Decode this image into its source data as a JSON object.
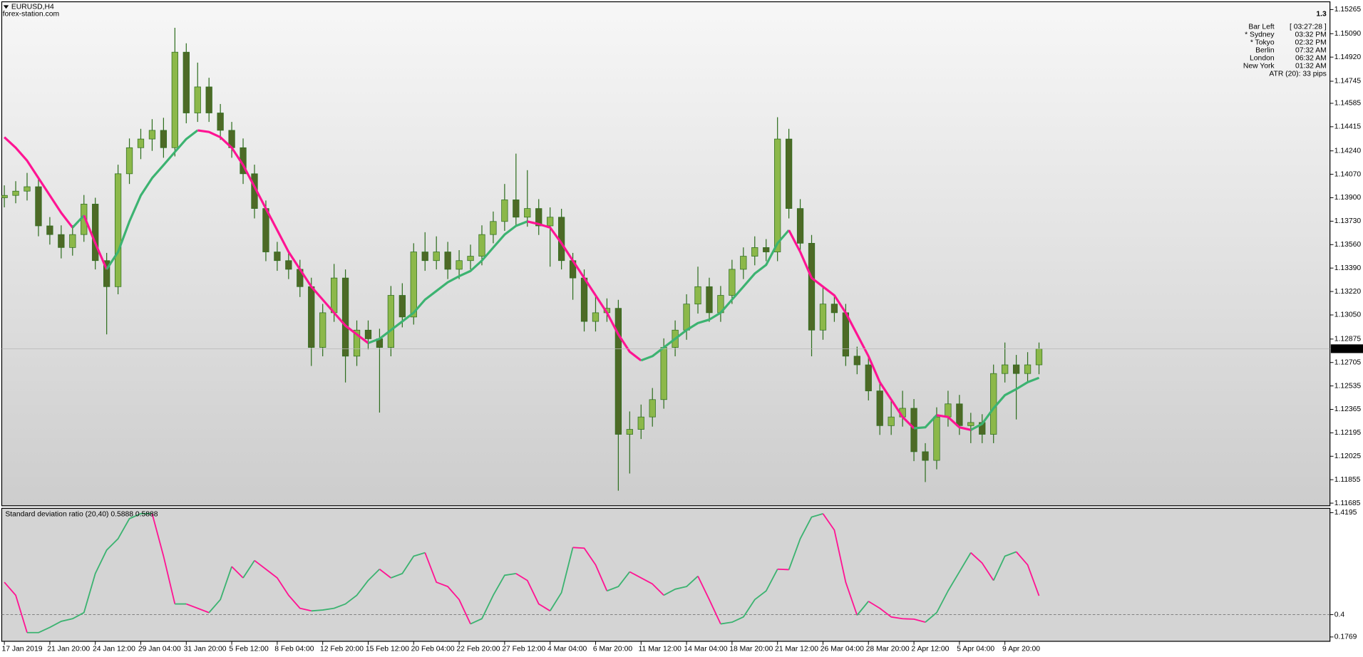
{
  "chart_data": [
    {
      "type": "candlestick",
      "title": "EURUSD,H4",
      "subtitle": "forex-station.com",
      "categories": [
        "17 Jan 2019",
        null,
        null,
        null,
        "21 Jan 20:00",
        null,
        null,
        null,
        "24 Jan 12:00",
        null,
        null,
        null,
        "29 Jan 04:00",
        null,
        null,
        null,
        "31 Jan 20:00",
        null,
        null,
        null,
        "5 Feb 12:00",
        null,
        null,
        null,
        "8 Feb 04:00",
        null,
        null,
        null,
        "12 Feb 20:00",
        null,
        null,
        null,
        "15 Feb 12:00",
        null,
        null,
        null,
        "20 Feb 04:00",
        null,
        null,
        null,
        "22 Feb 20:00",
        null,
        null,
        null,
        "27 Feb 12:00",
        null,
        null,
        null,
        "4 Mar 04:00",
        null,
        null,
        null,
        "6 Mar 20:00",
        null,
        null,
        null,
        "11 Mar 12:00",
        null,
        null,
        null,
        "14 Mar 04:00",
        null,
        null,
        null,
        "18 Mar 20:00",
        null,
        null,
        null,
        "21 Mar 12:00",
        null,
        null,
        null,
        "26 Mar 04:00",
        null,
        null,
        null,
        "28 Mar 20:00",
        null,
        null,
        null,
        "2 Apr 12:00",
        null,
        null,
        null,
        "5 Apr 04:00",
        null,
        null,
        null,
        "9 Apr 20:00",
        null,
        null,
        null
      ],
      "open": [
        1.139,
        1.13917,
        1.13948,
        1.1398,
        1.13696,
        1.13633,
        1.13539,
        1.13633,
        1.13854,
        1.13444,
        1.13255,
        1.14074,
        1.14263,
        1.14326,
        1.14389,
        1.14263,
        1.14956,
        1.14515,
        1.14704,
        1.14515,
        1.14389,
        1.14263,
        1.14074,
        1.13822,
        1.13507,
        1.13444,
        1.13381,
        1.13255,
        1.12814,
        1.13066,
        1.13318,
        1.12751,
        1.1294,
        1.12877,
        1.12814,
        1.13192,
        1.13035,
        1.13507,
        1.13444,
        1.13507,
        1.13381,
        1.13444,
        1.13476,
        1.13633,
        1.13728,
        1.13885,
        1.13759,
        1.13822,
        1.13696,
        1.13759,
        1.13444,
        1.13318,
        1.13003,
        1.13066,
        1.13098,
        1.12184,
        1.1222,
        1.1231,
        1.12436,
        1.12814,
        1.1294,
        1.13129,
        1.13255,
        1.13066,
        1.13192,
        1.13381,
        1.13476,
        1.13539,
        1.13507,
        1.14326,
        1.13822,
        1.1357,
        1.1294,
        1.13129,
        1.13066,
        1.12751,
        1.12688,
        1.12499,
        1.12247,
        1.1231,
        1.12373,
        1.12058,
        1.11995,
        1.1231,
        1.12405,
        1.12247,
        1.1227,
        1.12184,
        1.12625,
        1.12688,
        1.12625,
        1.12688
      ],
      "high": [
        1.1399,
        1.1402,
        1.1408,
        1.1404,
        1.1376,
        1.137,
        1.137,
        1.1392,
        1.139,
        1.135,
        1.1414,
        1.1433,
        1.144,
        1.1447,
        1.1448,
        1.15133,
        1.1502,
        1.1488,
        1.1477,
        1.1458,
        1.1445,
        1.1433,
        1.1414,
        1.1388,
        1.1358,
        1.1352,
        1.1345,
        1.1332,
        1.1313,
        1.1342,
        1.1338,
        1.1301,
        1.1301,
        1.1295,
        1.1326,
        1.1328,
        1.1357,
        1.1365,
        1.1362,
        1.1358,
        1.1352,
        1.1356,
        1.137,
        1.138,
        1.14,
        1.1422,
        1.141,
        1.1389,
        1.1383,
        1.1382,
        1.135,
        1.1338,
        1.132,
        1.1317,
        1.1316,
        1.1235,
        1.124,
        1.1252,
        1.1288,
        1.1301,
        1.132,
        1.134,
        1.1332,
        1.1326,
        1.1345,
        1.1354,
        1.1362,
        1.136,
        1.14484,
        1.144,
        1.1389,
        1.1363,
        1.1325,
        1.132,
        1.1313,
        1.1282,
        1.1275,
        1.1256,
        1.1244,
        1.125,
        1.1244,
        1.1212,
        1.1238,
        1.125,
        1.1247,
        1.1234,
        1.1233,
        1.1269,
        1.1285,
        1.1276,
        1.1278,
        1.1285
      ],
      "low": [
        1.1383,
        1.1386,
        1.1388,
        1.1362,
        1.1356,
        1.1346,
        1.1348,
        1.1358,
        1.1338,
        1.12909,
        1.132,
        1.14,
        1.1418,
        1.1424,
        1.1419,
        1.142,
        1.1444,
        1.1445,
        1.1445,
        1.1432,
        1.1419,
        1.14,
        1.1375,
        1.1344,
        1.1337,
        1.1331,
        1.1318,
        1.1268,
        1.1275,
        1.13,
        1.1256,
        1.1268,
        1.128,
        1.12342,
        1.1275,
        1.1296,
        1.1298,
        1.1337,
        1.1338,
        1.1331,
        1.1331,
        1.1338,
        1.1341,
        1.1357,
        1.1366,
        1.1369,
        1.1369,
        1.1363,
        1.134,
        1.1338,
        1.1316,
        1.1293,
        1.1293,
        1.13,
        1.11775,
        1.119,
        1.1215,
        1.1224,
        1.1237,
        1.1275,
        1.1287,
        1.1306,
        1.13,
        1.13,
        1.1313,
        1.1331,
        1.1341,
        1.1344,
        1.1344,
        1.1375,
        1.135,
        1.1275,
        1.1287,
        1.13,
        1.1268,
        1.1262,
        1.1243,
        1.1218,
        1.1218,
        1.1224,
        1.1199,
        1.11838,
        1.1193,
        1.1224,
        1.1218,
        1.1212,
        1.1212,
        1.1212,
        1.1256,
        1.12292,
        1.1256,
        1.1262
      ],
      "close": [
        1.13917,
        1.13948,
        1.1398,
        1.13696,
        1.13633,
        1.13539,
        1.13633,
        1.13854,
        1.13444,
        1.13255,
        1.14074,
        1.14263,
        1.14326,
        1.14389,
        1.14263,
        1.14956,
        1.14515,
        1.14704,
        1.14515,
        1.14389,
        1.14263,
        1.14074,
        1.13822,
        1.13507,
        1.13444,
        1.13381,
        1.13255,
        1.12814,
        1.13066,
        1.13318,
        1.12751,
        1.1294,
        1.12877,
        1.12814,
        1.13192,
        1.13035,
        1.13507,
        1.13444,
        1.13507,
        1.13381,
        1.13444,
        1.13476,
        1.13633,
        1.13728,
        1.13885,
        1.13759,
        1.13822,
        1.13696,
        1.13759,
        1.13444,
        1.13318,
        1.13003,
        1.13066,
        1.13098,
        1.12184,
        1.1222,
        1.1231,
        1.12436,
        1.12814,
        1.1294,
        1.13129,
        1.13255,
        1.13066,
        1.13192,
        1.13381,
        1.13476,
        1.13539,
        1.13507,
        1.14326,
        1.13822,
        1.1357,
        1.1294,
        1.13129,
        1.13066,
        1.12751,
        1.12688,
        1.12499,
        1.12247,
        1.1231,
        1.12373,
        1.12058,
        1.11995,
        1.1231,
        1.12405,
        1.12247,
        1.1227,
        1.12184,
        1.12625,
        1.12688,
        1.12625,
        1.12688,
        1.12805
      ],
      "up_color": "#8cb84a",
      "down_color": "#4d6a26",
      "wick_color": "#2e6e1e",
      "lines": [
        {
          "values": [
            1.14339,
            1.14263,
            1.14169,
            1.14043,
            1.13917,
            1.13791,
            1.13684,
            1.13772,
            1.1357,
            1.13381,
            1.13507,
            1.13728,
            1.13917,
            1.14043,
            1.14137,
            1.14232,
            1.14326,
            1.14389,
            1.14377,
            1.14339,
            1.14263,
            1.14137,
            1.1398,
            1.13822,
            1.13665,
            1.13507,
            1.13381,
            1.13255,
            1.13161,
            1.13066,
            1.12972,
            1.12909,
            1.12846,
            1.12877,
            1.1294,
            1.13003,
            1.13066,
            1.13161,
            1.13224,
            1.13287,
            1.13331,
            1.13369,
            1.13444,
            1.13539,
            1.13633,
            1.13696,
            1.13728,
            1.13709,
            1.13684,
            1.1357,
            1.13444,
            1.13318,
            1.13192,
            1.13066,
            1.12909,
            1.12783,
            1.1272,
            1.12751,
            1.12814,
            1.12877,
            1.1294,
            1.12991,
            1.13016,
            1.13066,
            1.13161,
            1.13255,
            1.1335,
            1.13413,
            1.1357,
            1.13665,
            1.13507,
            1.13318,
            1.13255,
            1.13192,
            1.13066,
            1.12909,
            1.12751,
            1.12562,
            1.12436,
            1.1231,
            1.12228,
            1.12235,
            1.12323,
            1.1231,
            1.12235,
            1.12216,
            1.1226,
            1.12373,
            1.12468,
            1.12512,
            1.12562,
            1.12594
          ],
          "up_color": "#3cb371",
          "down_color": "#ff1493"
        }
      ],
      "ylim": [
        1.11666,
        1.15315
      ],
      "yticks": [
        1.15265,
        {
          "value": 1.1509,
          "label": "1.15090"
        },
        {
          "value": 1.1492,
          "label": "1.14920"
        },
        1.14745,
        1.14585,
        1.14415,
        {
          "value": 1.1424,
          "label": "1.14240"
        },
        {
          "value": 1.1407,
          "label": "1.14070"
        },
        {
          "value": 1.139,
          "label": "1.13900"
        },
        {
          "value": 1.1373,
          "label": "1.13730"
        },
        {
          "value": 1.1356,
          "label": "1.13560"
        },
        {
          "value": 1.1339,
          "label": "1.13390"
        },
        {
          "value": 1.1322,
          "label": "1.13220"
        },
        {
          "value": 1.1305,
          "label": "1.13050"
        },
        1.12875,
        1.12705,
        1.12535,
        1.12365,
        1.12195,
        1.12025,
        1.11855,
        1.11685
      ],
      "info_panel": {
        "value": "1.3",
        "rows": [
          {
            "label": "Bar Left",
            "time": "[ 03:27:28 ]",
            "color": "#a0a0a0"
          },
          {
            "label": "* Sydney",
            "time": "03:32 PM",
            "color": "#ff0000"
          },
          {
            "label": "* Tokyo",
            "time": "02:32 PM",
            "color": "#ff0000"
          },
          {
            "label": "Berlin",
            "time": "07:32 AM",
            "color": "#a0a0a0"
          },
          {
            "label": "London",
            "time": "06:32 AM",
            "color": "#a0a0a0"
          },
          {
            "label": "New York",
            "time": "01:32 AM",
            "color": "#a0a0a0"
          }
        ],
        "footer": "ATR (20): 33 pips",
        "color": "#a0a0a0"
      }
    },
    {
      "type": "line",
      "title": "Standard deviation ratio (20,40) 0.5888 0.5888",
      "values": [
        0.7244,
        0.594,
        0.2204,
        0.2204,
        0.2725,
        0.3333,
        0.3594,
        0.4202,
        0.8113,
        1.0459,
        1.1589,
        1.36,
        1.41,
        1.41,
        0.9851,
        0.5071,
        0.5071,
        0.4637,
        0.4202,
        0.5506,
        0.8808,
        0.7678,
        0.9416,
        0.8547,
        0.7678,
        0.594,
        0.4637,
        0.4376,
        0.4463,
        0.4637,
        0.5071,
        0.594,
        0.7418,
        0.8547,
        0.7678,
        0.8113,
        0.9851,
        1.0198,
        0.7244,
        0.6809,
        0.5506,
        0.3073,
        0.3594,
        0.594,
        0.7939,
        0.8113,
        0.7418,
        0.5071,
        0.4376,
        0.6201,
        1.072,
        1.065,
        0.8982,
        0.6375,
        0.6809,
        0.8287,
        0.7678,
        0.707,
        0.594,
        0.6549,
        0.6809,
        0.7852,
        0.5506,
        0.3073,
        0.3246,
        0.3768,
        0.5506,
        0.6375,
        0.8547,
        0.85,
        1.1589,
        1.3761,
        1.41,
        1.2458,
        0.7244,
        0.3942,
        0.5332,
        0.4637,
        0.3768,
        0.3594,
        0.355,
        0.3246,
        0.4202,
        0.6375,
        0.8287,
        1.0198,
        0.9156,
        0.7418,
        0.9851,
        1.0285,
        0.8982,
        0.5888
      ],
      "up_color": "#3cb371",
      "down_color": "#ff1493",
      "ylim": [
        0.1334,
        1.463
      ],
      "yticks": [
        1.4195,
        0.4,
        0.1769
      ],
      "levels": [
        0.4
      ]
    }
  ]
}
